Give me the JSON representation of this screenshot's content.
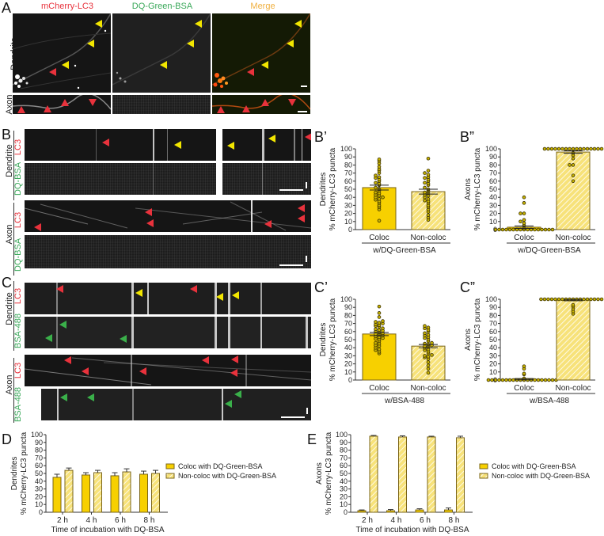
{
  "panels": {
    "A": {
      "letter": "A",
      "channels": [
        "mCherry-LC3",
        "DQ-Green-BSA",
        "Merge"
      ],
      "row_labels": [
        "Dendrite",
        "Axon"
      ]
    },
    "B": {
      "letter": "B",
      "region_labels": [
        "Dendrite",
        "Axon"
      ],
      "channel_labels": [
        "LC3",
        "DQ-BSA",
        "LC3",
        "DQ-BSA"
      ]
    },
    "C": {
      "letter": "C",
      "region_labels": [
        "Dendrite",
        "Axon"
      ],
      "channel_labels": [
        "LC3",
        "BSA-488",
        "LC3",
        "BSA-488"
      ]
    },
    "Bp": {
      "letter": "B’"
    },
    "Bpp": {
      "letter": "B”"
    },
    "Cp": {
      "letter": "C’"
    },
    "Cpp": {
      "letter": "C”"
    },
    "D": {
      "letter": "D"
    },
    "E": {
      "letter": "E"
    }
  },
  "colors": {
    "coloc_fill": "#f7d000",
    "noncoloc_fill": "#f7e27a",
    "noncoloc_hatch": "#ffffff",
    "bar_edge": "#7a6418",
    "dot_fill": "#c9b400",
    "red_arrow": "#e8323c",
    "yellow_arrow": "#f2e600",
    "green_arrow": "#3ab04a"
  },
  "chart_data": [
    {
      "id": "B-prime",
      "type": "bar",
      "title": "B’",
      "ylabel_line1": "Dendrites",
      "ylabel_line2": "% mCherry-LC3 puncta",
      "xlabel": "w/DQ-Green-BSA",
      "categories": [
        "Coloc",
        "Non-coloc"
      ],
      "values": [
        52,
        47
      ],
      "errors": [
        3,
        3
      ],
      "ylim": [
        0,
        100
      ],
      "yticks": [
        0,
        10,
        20,
        30,
        40,
        50,
        60,
        70,
        80,
        90,
        100
      ],
      "points": [
        [
          11,
          25,
          28,
          30,
          33,
          35,
          37,
          38,
          40,
          40,
          42,
          43,
          45,
          46,
          48,
          50,
          52,
          55,
          57,
          58,
          60,
          62,
          64,
          65,
          67,
          70,
          73,
          75,
          78,
          82,
          85,
          87
        ],
        [
          12,
          15,
          18,
          22,
          25,
          28,
          30,
          33,
          35,
          36,
          38,
          40,
          42,
          43,
          45,
          46,
          48,
          50,
          52,
          55,
          57,
          58,
          60,
          62,
          64,
          65,
          68,
          70,
          73,
          88
        ]
      ]
    },
    {
      "id": "B-doubleprime",
      "type": "bar",
      "title": "B”",
      "ylabel_line1": "Axons",
      "ylabel_line2": "% mCherry-LC3 puncta",
      "xlabel": "w/DQ-Green-BSA",
      "categories": [
        "Coloc",
        "Non-coloc"
      ],
      "values": [
        3,
        96
      ],
      "errors": [
        1.5,
        1.5
      ],
      "ylim": [
        0,
        100
      ],
      "yticks": [
        0,
        10,
        20,
        30,
        40,
        50,
        60,
        70,
        80,
        90,
        100
      ],
      "points": [
        [
          0,
          0,
          0,
          0,
          0,
          0,
          0,
          0,
          0,
          0,
          0,
          0,
          0,
          0,
          0,
          0,
          0,
          2,
          5,
          8,
          10,
          12,
          20,
          20,
          33,
          40
        ],
        [
          60,
          67,
          80,
          80,
          88,
          92,
          95,
          100,
          100,
          100,
          100,
          100,
          100,
          100,
          100,
          100,
          100,
          100,
          100,
          100,
          100,
          100,
          100,
          100
        ]
      ]
    },
    {
      "id": "C-prime",
      "type": "bar",
      "title": "C’",
      "ylabel_line1": "Dendrites",
      "ylabel_line2": "% mCherry-LC3 puncta",
      "xlabel": "w/BSA-488",
      "categories": [
        "Coloc",
        "Non-coloc"
      ],
      "values": [
        57,
        42
      ],
      "errors": [
        2,
        2
      ],
      "ylim": [
        0,
        100
      ],
      "yticks": [
        0,
        10,
        20,
        30,
        40,
        50,
        60,
        70,
        80,
        90,
        100
      ],
      "points": [
        [
          33,
          35,
          37,
          38,
          40,
          42,
          43,
          45,
          46,
          48,
          50,
          51,
          52,
          53,
          54,
          55,
          56,
          57,
          58,
          59,
          60,
          61,
          62,
          63,
          64,
          66,
          67,
          68,
          69,
          70,
          71,
          72,
          73,
          78,
          83,
          91
        ],
        [
          9,
          14,
          18,
          22,
          26,
          28,
          29,
          30,
          31,
          33,
          35,
          37,
          38,
          40,
          41,
          42,
          43,
          44,
          45,
          46,
          48,
          50,
          52,
          53,
          55,
          56,
          58,
          60,
          62,
          64,
          65,
          67
        ]
      ]
    },
    {
      "id": "C-doubleprime",
      "type": "bar",
      "title": "C”",
      "ylabel_line1": "Axons",
      "ylabel_line2": "% mCherry-LC3 puncta",
      "xlabel": "w/BSA-488",
      "categories": [
        "Coloc",
        "Non-coloc"
      ],
      "values": [
        1,
        99
      ],
      "errors": [
        0.8,
        0.8
      ],
      "ylim": [
        0,
        100
      ],
      "yticks": [
        0,
        10,
        20,
        30,
        40,
        50,
        60,
        70,
        80,
        90,
        100
      ],
      "points": [
        [
          0,
          0,
          0,
          0,
          0,
          0,
          0,
          0,
          0,
          0,
          0,
          0,
          0,
          0,
          0,
          0,
          0,
          0,
          0,
          0,
          2,
          7,
          8,
          14,
          17
        ],
        [
          82,
          85,
          88,
          91,
          93,
          100,
          100,
          100,
          100,
          100,
          100,
          100,
          100,
          100,
          100,
          100,
          100,
          100,
          100,
          100,
          100,
          100,
          100
        ]
      ]
    },
    {
      "id": "D",
      "type": "bar",
      "title": "D",
      "ylabel_line1": "Dendrites",
      "ylabel_line2": "% mCherry-LC3 puncta",
      "xlabel": "Time of incubation with DQ-BSA",
      "categories": [
        "2 h",
        "4 h",
        "6 h",
        "8 h"
      ],
      "series": [
        {
          "name": "Coloc with DQ-Green-BSA",
          "values": [
            45,
            48,
            47,
            49
          ],
          "errors": [
            4,
            3,
            4,
            4
          ]
        },
        {
          "name": "Non-coloc with DQ-Green-BSA",
          "values": [
            54,
            51,
            52,
            50
          ],
          "errors": [
            3,
            3,
            4,
            4
          ]
        }
      ],
      "ylim": [
        0,
        100
      ],
      "yticks": [
        0,
        10,
        20,
        30,
        40,
        50,
        60,
        70,
        80,
        90,
        100
      ],
      "legend_position": "right"
    },
    {
      "id": "E",
      "type": "bar",
      "title": "E",
      "ylabel_line1": "Axons",
      "ylabel_line2": "% mCherry-LC3 puncta",
      "xlabel": "Time of incubation with DQ-BSA",
      "categories": [
        "2 h",
        "4 h",
        "6 h",
        "8 h"
      ],
      "series": [
        {
          "name": "Coloc with DQ-Green-BSA",
          "values": [
            2,
            2,
            3,
            3
          ],
          "errors": [
            1,
            1.5,
            1.5,
            2.5
          ]
        },
        {
          "name": "Non-coloc with DQ-Green-BSA",
          "values": [
            98,
            97,
            97,
            96
          ],
          "errors": [
            1,
            1.5,
            1,
            2
          ]
        }
      ],
      "ylim": [
        0,
        100
      ],
      "yticks": [
        0,
        10,
        20,
        30,
        40,
        50,
        60,
        70,
        80,
        90,
        100
      ],
      "legend_position": "right"
    }
  ]
}
